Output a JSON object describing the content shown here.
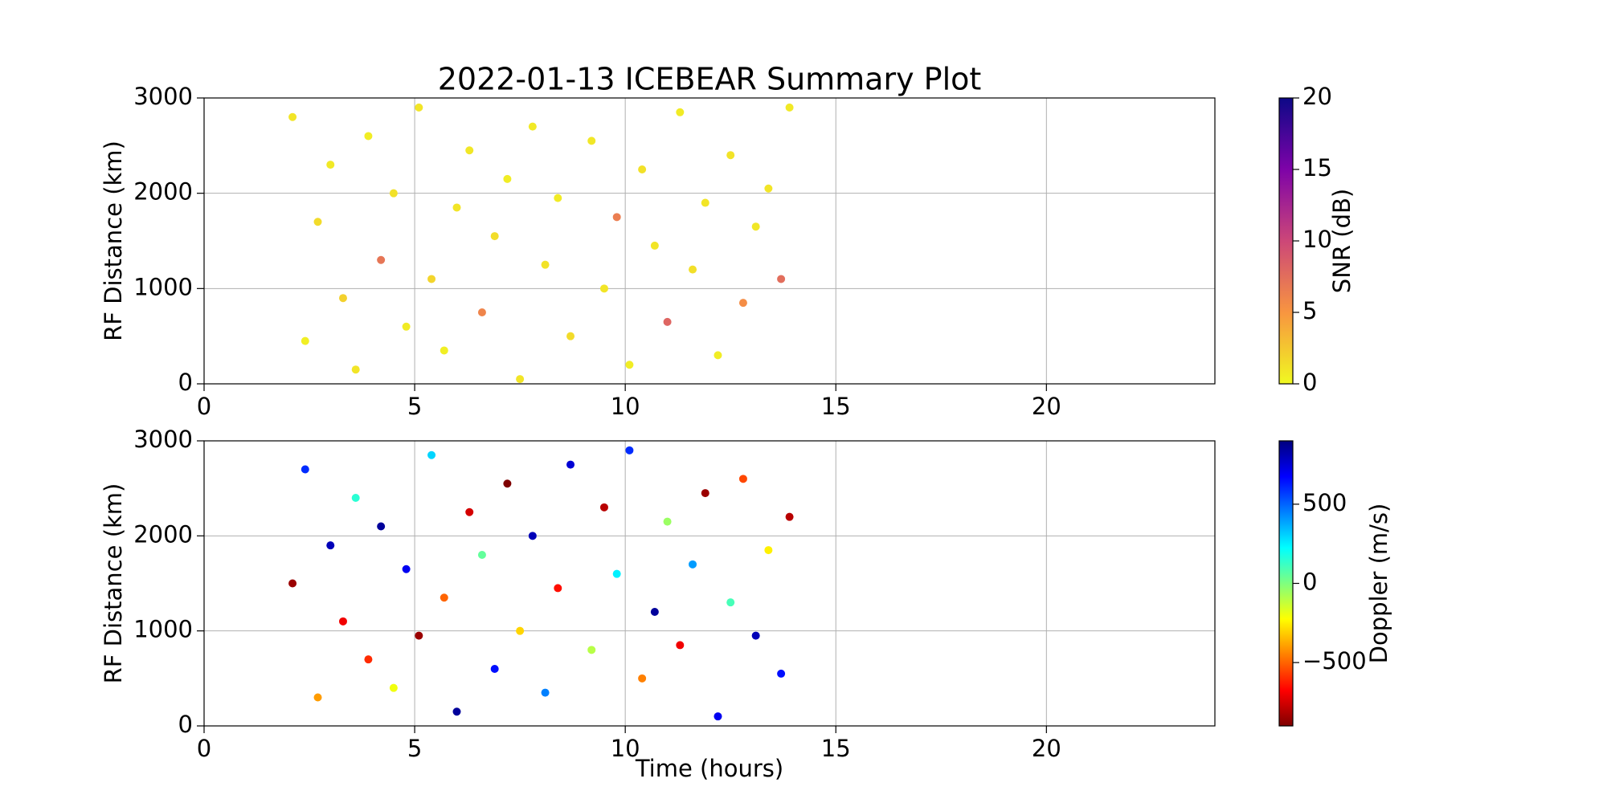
{
  "chart_data": [
    {
      "type": "scatter",
      "title": "2022-01-13 ICEBEAR Summary Plot",
      "y_label": "RF Distance (km)",
      "xlim": [
        0,
        24
      ],
      "xticks": [
        0,
        5,
        10,
        15,
        20
      ],
      "ylim": [
        0,
        3000
      ],
      "yticks": [
        0,
        1000,
        2000,
        3000
      ],
      "grid": true,
      "x": [
        2.1,
        2.4,
        2.7,
        3.0,
        3.3,
        3.6,
        3.9,
        4.2,
        4.5,
        4.8,
        5.1,
        5.4,
        5.7,
        6.0,
        6.3,
        6.6,
        6.9,
        7.2,
        7.5,
        7.8,
        8.1,
        8.4,
        8.7,
        9.2,
        9.5,
        9.8,
        10.1,
        10.4,
        10.7,
        11.0,
        11.3,
        11.6,
        11.9,
        12.2,
        12.5,
        12.8,
        13.1,
        13.4,
        13.7,
        13.9
      ],
      "values": [
        2800,
        450,
        1700,
        2300,
        900,
        150,
        2600,
        1300,
        2000,
        600,
        2900,
        1100,
        350,
        1850,
        2450,
        750,
        1550,
        2150,
        50,
        2700,
        1250,
        1950,
        500,
        2550,
        1000,
        1750,
        200,
        2250,
        1450,
        650,
        2850,
        1200,
        1900,
        300,
        2400,
        850,
        1650,
        2050,
        1100,
        2900
      ],
      "color_values": [
        1,
        0.5,
        1.5,
        0.8,
        2,
        1,
        0.6,
        7,
        1.2,
        0.7,
        1,
        1.8,
        0.5,
        1,
        0.9,
        6,
        1.4,
        0.6,
        1,
        0.8,
        1.1,
        0.7,
        1.5,
        0.9,
        1,
        6.5,
        0.6,
        1.2,
        1,
        8,
        0.7,
        1.3,
        1,
        0.6,
        1.1,
        5.5,
        0.9,
        1,
        7.5,
        0.8
      ],
      "colorbar": {
        "label": "SNR (dB)",
        "lim": [
          0,
          20
        ],
        "ticks": [
          0,
          5,
          10,
          15,
          20
        ],
        "colormap": [
          "#f0f921",
          "#f89540",
          "#cc4778",
          "#7e03a8",
          "#0d0887"
        ]
      }
    },
    {
      "type": "scatter",
      "x_label": "Time (hours)",
      "y_label": "RF Distance (km)",
      "xlim": [
        0,
        24
      ],
      "xticks": [
        0,
        5,
        10,
        15,
        20
      ],
      "ylim": [
        0,
        3000
      ],
      "yticks": [
        0,
        1000,
        2000,
        3000
      ],
      "grid": true,
      "x": [
        2.1,
        2.4,
        2.7,
        3.0,
        3.3,
        3.6,
        3.9,
        4.2,
        4.5,
        4.8,
        5.1,
        5.4,
        5.7,
        6.0,
        6.3,
        6.6,
        6.9,
        7.2,
        7.5,
        7.8,
        8.1,
        8.4,
        8.7,
        9.2,
        9.5,
        9.8,
        10.1,
        10.4,
        10.7,
        11.0,
        11.3,
        11.6,
        11.9,
        12.2,
        12.5,
        12.8,
        13.1,
        13.4,
        13.7,
        13.9
      ],
      "values": [
        1500,
        2700,
        300,
        1900,
        1100,
        2400,
        700,
        2100,
        400,
        1650,
        950,
        2850,
        1350,
        150,
        2250,
        1800,
        600,
        2550,
        1000,
        2000,
        350,
        1450,
        2750,
        800,
        2300,
        1600,
        2900,
        500,
        1200,
        2150,
        850,
        1700,
        2450,
        100,
        1300,
        2600,
        950,
        1850,
        550,
        2200
      ],
      "color_values": [
        -850,
        600,
        -400,
        800,
        -700,
        150,
        -600,
        850,
        -200,
        700,
        -850,
        300,
        -500,
        850,
        -750,
        50,
        650,
        -900,
        -300,
        800,
        450,
        -650,
        750,
        -100,
        -800,
        250,
        600,
        -450,
        850,
        -50,
        -700,
        400,
        -850,
        700,
        100,
        -550,
        800,
        -250,
        650,
        -800
      ],
      "colorbar": {
        "label": "Doppler (m/s)",
        "lim": [
          -900,
          900
        ],
        "ticks": [
          {
            "value": -500,
            "label": "−500"
          },
          0,
          500
        ],
        "colormap": [
          "#7f0000",
          "#ff0000",
          "#ff8000",
          "#ffff00",
          "#7fff7f",
          "#00ffff",
          "#0080ff",
          "#0000ff",
          "#00007f"
        ]
      }
    }
  ]
}
